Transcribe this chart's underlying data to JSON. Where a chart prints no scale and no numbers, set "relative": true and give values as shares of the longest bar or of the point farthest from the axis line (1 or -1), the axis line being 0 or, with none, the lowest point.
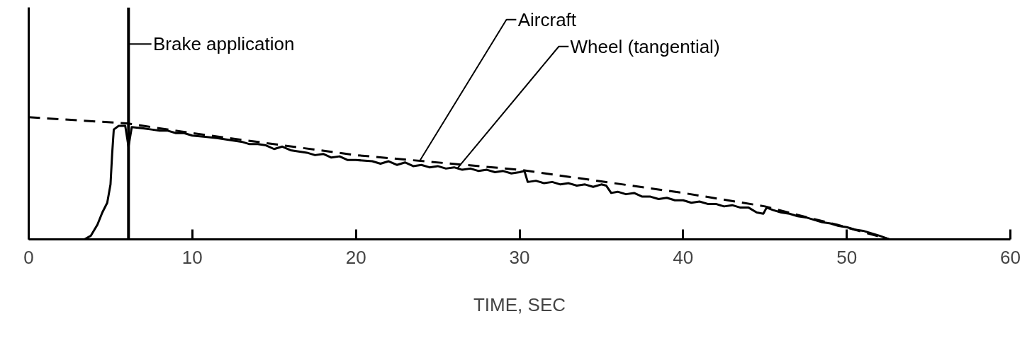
{
  "chart_data": {
    "type": "line",
    "relative": true,
    "xlabel": "TIME, SEC",
    "xlim": [
      0,
      60
    ],
    "xticks": [
      0,
      10,
      20,
      30,
      40,
      50,
      60
    ],
    "grid": false,
    "marker": "none",
    "series": [
      {
        "name": "Aircraft",
        "color": "#000000",
        "line_style": "dashed",
        "x": [
          0,
          6,
          10,
          20,
          30,
          40,
          45,
          47,
          49.4,
          52.6
        ],
        "values": [
          1,
          0.95,
          0.87,
          0.69,
          0.57,
          0.38,
          0.27,
          0.2,
          0.12,
          0
        ]
      },
      {
        "name": "Wheel (tangential)",
        "color": "#000000",
        "line_style": "solid",
        "x": [
          3.4,
          3.8,
          4.2,
          4.5,
          4.8,
          5.0,
          5.1,
          5.2,
          5.5,
          5.9,
          6.1,
          6.3,
          7,
          7.5,
          8,
          8.5,
          9,
          9.5,
          10,
          10.8,
          11.5,
          12,
          12.5,
          13,
          13.5,
          14,
          14.5,
          15,
          15.5,
          16,
          17,
          17.5,
          18,
          18.5,
          19,
          19.5,
          20,
          21,
          21.5,
          22,
          22.5,
          23,
          23.5,
          24,
          24.5,
          25,
          25.5,
          26,
          26.5,
          27,
          27.5,
          28,
          28.5,
          29,
          29.5,
          30,
          30.3,
          30.5,
          31,
          31.5,
          32,
          32.5,
          33,
          33.5,
          34,
          34.5,
          35,
          35.3,
          35.6,
          36,
          36.5,
          37,
          37.5,
          38,
          38.5,
          39,
          39.5,
          40,
          40.5,
          41,
          41.5,
          42,
          42.5,
          43,
          43.5,
          44,
          44.5,
          44.9,
          45.1,
          45.5,
          46,
          46.5,
          47,
          47.5,
          48,
          48.5,
          49,
          49.5,
          50,
          50.5,
          51,
          51.5,
          52,
          52.6
        ],
        "values": [
          0,
          0.03,
          0.12,
          0.22,
          0.3,
          0.45,
          0.7,
          0.9,
          0.93,
          0.93,
          0.76,
          0.92,
          0.91,
          0.9,
          0.89,
          0.89,
          0.87,
          0.87,
          0.85,
          0.84,
          0.83,
          0.82,
          0.81,
          0.8,
          0.78,
          0.78,
          0.77,
          0.74,
          0.76,
          0.73,
          0.71,
          0.69,
          0.7,
          0.67,
          0.68,
          0.65,
          0.65,
          0.64,
          0.62,
          0.64,
          0.61,
          0.63,
          0.6,
          0.61,
          0.59,
          0.6,
          0.58,
          0.59,
          0.57,
          0.58,
          0.56,
          0.57,
          0.55,
          0.56,
          0.54,
          0.55,
          0.56,
          0.47,
          0.48,
          0.46,
          0.47,
          0.45,
          0.46,
          0.44,
          0.45,
          0.43,
          0.45,
          0.44,
          0.38,
          0.39,
          0.37,
          0.38,
          0.35,
          0.35,
          0.33,
          0.34,
          0.32,
          0.32,
          0.3,
          0.31,
          0.29,
          0.29,
          0.27,
          0.28,
          0.26,
          0.26,
          0.22,
          0.21,
          0.26,
          0.24,
          0.22,
          0.21,
          0.19,
          0.18,
          0.16,
          0.14,
          0.13,
          0.11,
          0.1,
          0.08,
          0.07,
          0.05,
          0.03,
          0
        ]
      }
    ],
    "ref_lines": [
      {
        "axis": "x",
        "value": 6.1,
        "label": "Brake application",
        "color": "#000000"
      }
    ]
  }
}
